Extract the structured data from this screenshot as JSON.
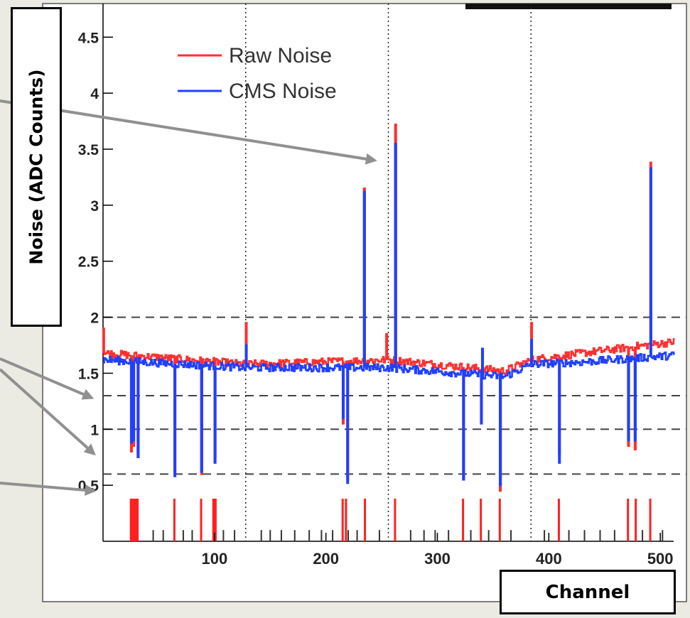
{
  "chart_data": {
    "type": "line",
    "title": "",
    "xlabel": "Channel",
    "ylabel": "Noise (ADC Counts)",
    "xlim": [
      0,
      512
    ],
    "ylim": [
      0,
      4.8
    ],
    "x_ticks": [
      100,
      200,
      300,
      400,
      500
    ],
    "y_ticks": [
      0.5,
      1,
      1.5,
      2,
      2.5,
      3,
      3.5,
      4,
      4.5
    ],
    "y_tick_labels": [
      "0.5",
      "1",
      "1.5",
      "2",
      "2.5",
      "3",
      "3.5",
      "4",
      "4.5"
    ],
    "vertical_dotted_lines": [
      128,
      256,
      384
    ],
    "horizontal_dashed_lines": [
      2.0,
      1.3,
      1.0,
      0.6
    ],
    "legend": {
      "placement": "top-left"
    },
    "series": [
      {
        "name": "Raw Noise",
        "color": "#ff3030",
        "baseline": [
          [
            0,
            1.68
          ],
          [
            128,
            1.58
          ],
          [
            256,
            1.62
          ],
          [
            360,
            1.52
          ],
          [
            384,
            1.62
          ],
          [
            430,
            1.68
          ],
          [
            512,
            1.78
          ]
        ],
        "spikes": [
          [
            0,
            1.9
          ],
          [
            128,
            1.95
          ],
          [
            234,
            3.15
          ],
          [
            254,
            1.85
          ],
          [
            262,
            3.72
          ],
          [
            384,
            1.95
          ],
          [
            491,
            3.38
          ]
        ],
        "dips": [
          [
            25,
            0.8
          ],
          [
            27,
            0.85
          ],
          [
            31,
            0.78
          ],
          [
            64,
            0.6
          ],
          [
            88,
            0.6
          ],
          [
            100,
            0.75
          ],
          [
            215,
            1.05
          ],
          [
            219,
            0.55
          ],
          [
            323,
            0.55
          ],
          [
            339,
            1.08
          ],
          [
            356,
            0.45
          ],
          [
            409,
            0.78
          ],
          [
            471,
            0.85
          ],
          [
            477,
            0.82
          ]
        ]
      },
      {
        "name": "CMS Noise",
        "color": "#2040ff",
        "baseline": [
          [
            0,
            1.62
          ],
          [
            128,
            1.55
          ],
          [
            256,
            1.55
          ],
          [
            360,
            1.47
          ],
          [
            384,
            1.58
          ],
          [
            430,
            1.6
          ],
          [
            512,
            1.66
          ]
        ],
        "spikes": [
          [
            128,
            1.75
          ],
          [
            234,
            3.12
          ],
          [
            262,
            3.55
          ],
          [
            340,
            1.72
          ],
          [
            384,
            1.8
          ],
          [
            491,
            3.33
          ]
        ],
        "dips": [
          [
            25,
            0.88
          ],
          [
            27,
            0.9
          ],
          [
            31,
            0.75
          ],
          [
            64,
            0.58
          ],
          [
            88,
            0.62
          ],
          [
            100,
            0.7
          ],
          [
            215,
            1.1
          ],
          [
            219,
            0.52
          ],
          [
            323,
            0.55
          ],
          [
            339,
            1.05
          ],
          [
            356,
            0.5
          ],
          [
            409,
            0.7
          ],
          [
            471,
            0.9
          ],
          [
            477,
            0.9
          ]
        ]
      }
    ],
    "bad_channel_markers": {
      "color": "#ff2020",
      "channels": [
        25,
        26,
        27,
        28,
        29,
        30,
        31,
        64,
        88,
        99,
        100,
        101,
        215,
        218,
        235,
        262,
        323,
        339,
        356,
        409,
        471,
        478,
        491
      ],
      "height": 0.38
    },
    "gray_markers": {
      "color": "#333333",
      "channels": [
        30,
        45,
        54,
        72,
        80,
        108,
        118,
        142,
        150,
        160,
        172,
        185,
        196,
        206,
        220,
        228,
        248,
        276,
        288,
        298,
        310,
        330,
        346,
        366,
        396,
        418,
        432,
        446,
        459,
        484,
        502
      ],
      "height": 0.1
    }
  },
  "annotation_arrows": [
    {
      "to_channel": 244,
      "to_value": 3.4
    },
    {
      "to_channel": -10,
      "to_value": 1.28
    },
    {
      "to_channel": -8,
      "to_value": 0.78
    },
    {
      "to_channel": -8,
      "to_value": 0.45
    }
  ],
  "colors": {
    "background": "#ebebe3",
    "arrow": "#909090",
    "grid": "#444444"
  }
}
